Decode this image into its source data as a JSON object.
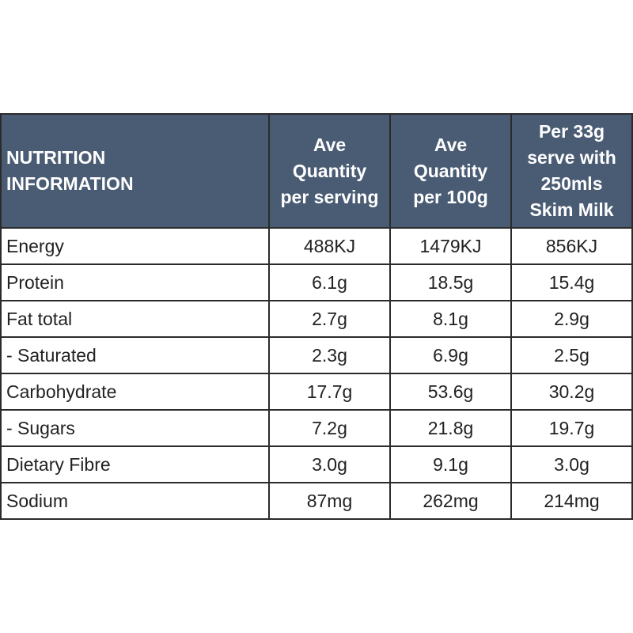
{
  "table": {
    "headers": [
      "NUTRITION\nINFORMATION",
      "Ave\nQuantity\nper serving",
      "Ave\nQuantity\nper 100g",
      "Per 33g\nserve with\n250mls\nSkim Milk"
    ],
    "rows": [
      [
        "Energy",
        "488KJ",
        "1479KJ",
        "856KJ"
      ],
      [
        "Protein",
        "6.1g",
        "18.5g",
        "15.4g"
      ],
      [
        "Fat total",
        "2.7g",
        "8.1g",
        "2.9g"
      ],
      [
        "- Saturated",
        "2.3g",
        "6.9g",
        "2.5g"
      ],
      [
        "Carbohydrate",
        "17.7g",
        "53.6g",
        "30.2g"
      ],
      [
        "- Sugars",
        "7.2g",
        "21.8g",
        "19.7g"
      ],
      [
        "Dietary Fibre",
        "3.0g",
        "9.1g",
        "3.0g"
      ],
      [
        "Sodium",
        "87mg",
        "262mg",
        "214mg"
      ]
    ]
  },
  "colors": {
    "header_background": "#4a5c74",
    "header_text": "#ffffff",
    "border": "#2b2b2b",
    "body_text": "#222222"
  }
}
